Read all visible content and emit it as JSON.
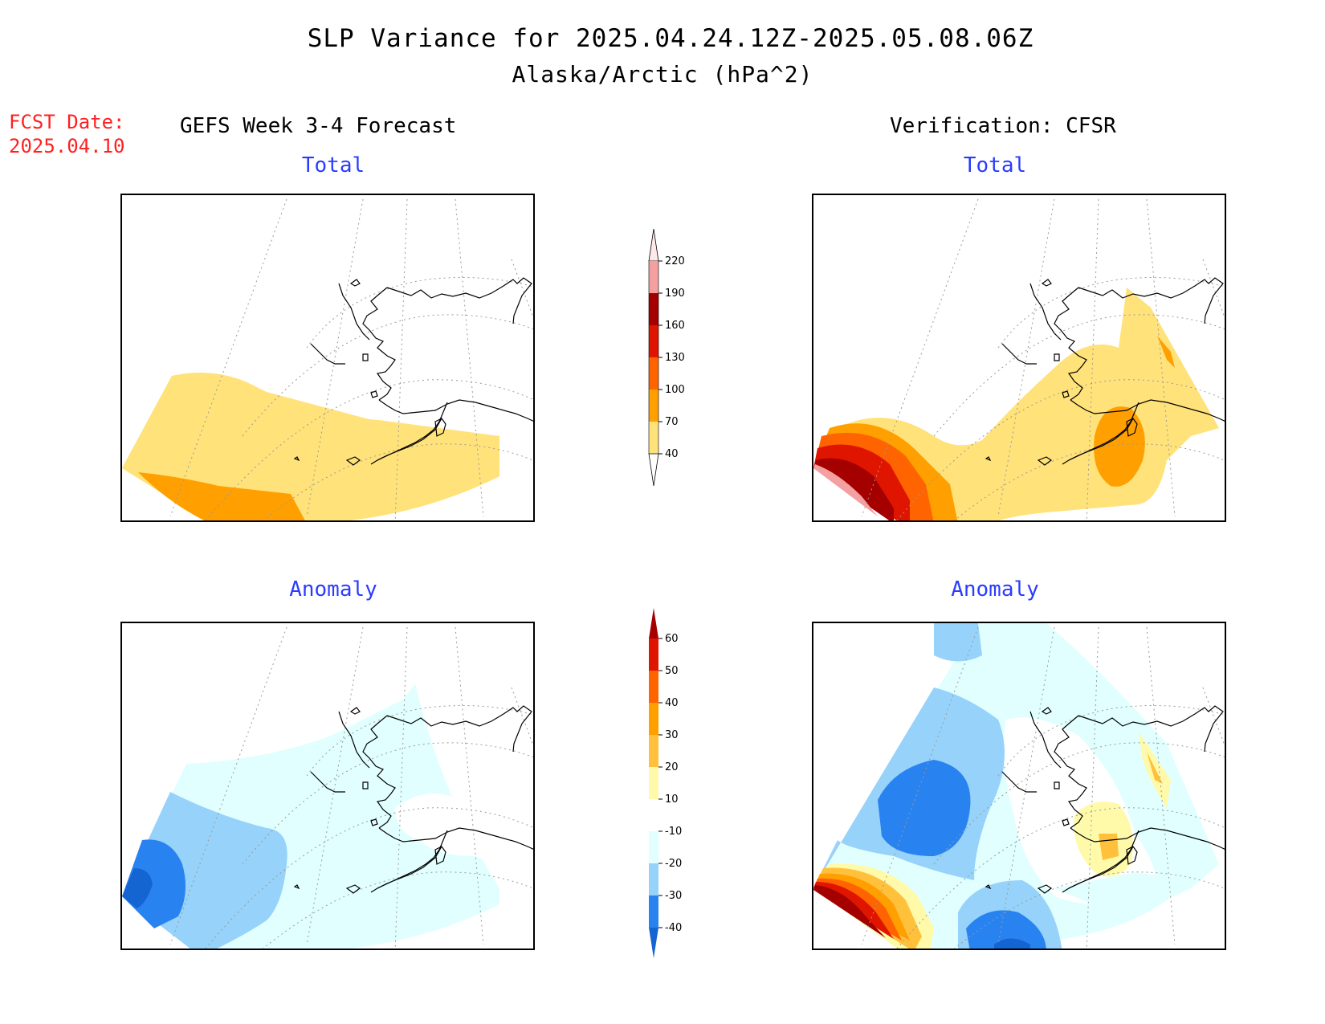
{
  "header": {
    "title": "SLP Variance for 2025.04.24.12Z-2025.05.08.06Z",
    "subtitle": "Alaska/Arctic (hPa^2)"
  },
  "fcst": {
    "label": "FCST Date:",
    "date": "2025.04.10"
  },
  "columns": {
    "left": "GEFS Week 3-4 Forecast",
    "right": "Verification: CFSR"
  },
  "panels": {
    "fcst_total_title": "Total",
    "fcst_anomaly_title": "Anomaly",
    "verif_total_title": "Total",
    "verif_anomaly_title": "Anomaly"
  },
  "colorbars": {
    "total": {
      "ticks": [
        "40",
        "70",
        "100",
        "130",
        "160",
        "190",
        "220"
      ],
      "colors": [
        "#ffe27a",
        "#ff9f00",
        "#ff6400",
        "#e01500",
        "#a50000",
        "#f4a0a0",
        "#ffe8e8"
      ]
    },
    "anomaly": {
      "ticks": [
        "-40",
        "-30",
        "-20",
        "-10",
        "10",
        "20",
        "30",
        "40",
        "50",
        "60"
      ],
      "colors": [
        "#1464d2",
        "#2882f0",
        "#96d2fa",
        "#e1ffff",
        "#ffffff",
        "#fffaaa",
        "#ffc03c",
        "#ff9f00",
        "#ff6400",
        "#e01500",
        "#a50000"
      ]
    }
  }
}
